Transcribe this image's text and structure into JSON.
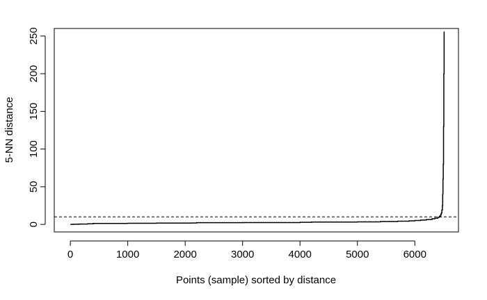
{
  "chart_data": {
    "type": "line",
    "title": "",
    "xlabel": "Points (sample) sorted by distance",
    "ylabel": "5-NN distance",
    "xlim": [
      -280,
      6760
    ],
    "ylim": [
      -10,
      260
    ],
    "x_ticks": [
      0,
      1000,
      2000,
      3000,
      4000,
      5000,
      6000
    ],
    "y_ticks": [
      0,
      50,
      100,
      150,
      200,
      250
    ],
    "grid": false,
    "legend": "none",
    "reference_line": {
      "y": 10,
      "style": "dashed",
      "color": "#000000"
    },
    "series": [
      {
        "color": "#000000",
        "step": true,
        "x": [
          0,
          50,
          150,
          300,
          400,
          1000,
          1500,
          2100,
          2200,
          3000,
          4000,
          4200,
          5000,
          5400,
          5700,
          5900,
          6000,
          6100,
          6200,
          6300,
          6350,
          6400,
          6430,
          6450,
          6460,
          6470,
          6480,
          6485,
          6490,
          6495,
          6500,
          6505,
          6510
        ],
        "y": [
          0,
          0.3,
          0.5,
          0.8,
          1.3,
          1.5,
          1.7,
          1.9,
          2.3,
          2.5,
          2.8,
          3.1,
          3.4,
          3.8,
          4.3,
          4.8,
          5.2,
          5.8,
          6.5,
          7.5,
          8.3,
          9.5,
          11,
          13,
          15,
          19,
          25,
          40,
          60,
          80,
          130,
          200,
          256
        ]
      }
    ]
  }
}
